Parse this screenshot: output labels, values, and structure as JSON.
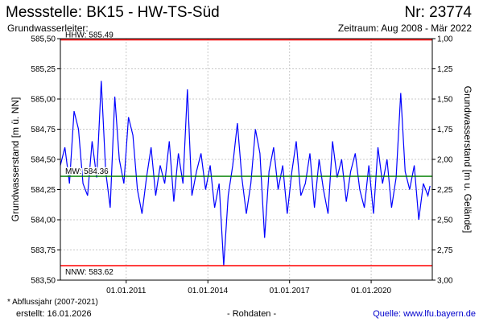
{
  "header": {
    "title_left": "Messstelle: BK15 - HW-TS-Süd",
    "title_right": "Nr: 23774",
    "subtitle_left": "Grundwasserleiter:",
    "subtitle_right": "Zeitraum: Aug 2008 - Mär 2022"
  },
  "footer": {
    "note": "* Abflussjahr (2007-2021)",
    "created": "erstellt:  16.01.2026",
    "raw": "- Rohdaten -",
    "source": "Quelle:  www.lfu.bayern.de"
  },
  "colors": {
    "series": "#0000ff",
    "hhw": "#ff0000",
    "nnw": "#ff0000",
    "mw": "#008000",
    "grid": "#c8c8c8"
  },
  "chart_data": {
    "type": "line",
    "ylabel": "Grundwasserstand [m ü. NN]",
    "y2label": "Grundwasserstand [m u. Gelände]",
    "ylim": [
      583.5,
      585.5
    ],
    "y2lim": [
      3.0,
      1.0
    ],
    "xlim": [
      "2008-08-01",
      "2022-03-31"
    ],
    "yticks": [
      "585,50",
      "585,25",
      "585,00",
      "584,75",
      "584,50",
      "584,25",
      "584,00",
      "583,75",
      "583,50"
    ],
    "y2ticks": [
      "1,00",
      "1,25",
      "1,50",
      "1,75",
      "2,00",
      "2,25",
      "2,50",
      "2,75",
      "3,00"
    ],
    "xticks": [
      "01.01.2011",
      "01.01.2014",
      "01.01.2017",
      "01.01.2020"
    ],
    "grid": true,
    "reference_lines": [
      {
        "label": "HHW: 585.49",
        "value": 585.49
      },
      {
        "label": "MW: 584.36",
        "value": 584.36
      },
      {
        "label": "NNW: 583.62",
        "value": 583.62
      }
    ],
    "series": [
      {
        "x": [
          "2008-08",
          "2008-10",
          "2008-12",
          "2009-02",
          "2009-04",
          "2009-06",
          "2009-08",
          "2009-10",
          "2009-12",
          "2010-02",
          "2010-04",
          "2010-06",
          "2010-08",
          "2010-10",
          "2010-12",
          "2011-02",
          "2011-04",
          "2011-06",
          "2011-08",
          "2011-10",
          "2011-12",
          "2012-02",
          "2012-04",
          "2012-06",
          "2012-08",
          "2012-10",
          "2012-12",
          "2013-02",
          "2013-04",
          "2013-06",
          "2013-08",
          "2013-10",
          "2013-12",
          "2014-02",
          "2014-04",
          "2014-06",
          "2014-08",
          "2014-10",
          "2014-12",
          "2015-02",
          "2015-04",
          "2015-06",
          "2015-08",
          "2015-10",
          "2015-12",
          "2016-02",
          "2016-04",
          "2016-06",
          "2016-08",
          "2016-10",
          "2016-12",
          "2017-02",
          "2017-04",
          "2017-06",
          "2017-08",
          "2017-10",
          "2017-12",
          "2018-02",
          "2018-04",
          "2018-06",
          "2018-08",
          "2018-10",
          "2018-12",
          "2019-02",
          "2019-04",
          "2019-06",
          "2019-08",
          "2019-10",
          "2019-12",
          "2020-02",
          "2020-04",
          "2020-06",
          "2020-08",
          "2020-10",
          "2020-12",
          "2021-02",
          "2021-04",
          "2021-06",
          "2021-08",
          "2021-10",
          "2021-12",
          "2022-02",
          "2022-03"
        ],
        "values": [
          584.45,
          584.6,
          584.3,
          584.9,
          584.75,
          584.3,
          584.2,
          584.65,
          584.35,
          585.15,
          584.4,
          584.1,
          585.02,
          584.5,
          584.3,
          584.85,
          584.7,
          584.25,
          584.05,
          584.35,
          584.6,
          584.2,
          584.45,
          584.3,
          584.65,
          584.15,
          584.55,
          584.3,
          585.08,
          584.2,
          584.4,
          584.55,
          584.25,
          584.45,
          584.1,
          584.3,
          583.62,
          584.2,
          584.45,
          584.8,
          584.35,
          584.05,
          584.3,
          584.75,
          584.55,
          583.85,
          584.4,
          584.6,
          584.25,
          584.45,
          584.05,
          584.4,
          584.65,
          584.2,
          584.3,
          584.55,
          584.1,
          584.5,
          584.25,
          584.05,
          584.65,
          584.35,
          584.5,
          584.15,
          584.4,
          584.55,
          584.25,
          584.1,
          584.45,
          584.05,
          584.6,
          584.3,
          584.5,
          584.1,
          584.35,
          585.05,
          584.4,
          584.25,
          584.45,
          584.0,
          584.3,
          584.2,
          584.28
        ]
      }
    ]
  }
}
